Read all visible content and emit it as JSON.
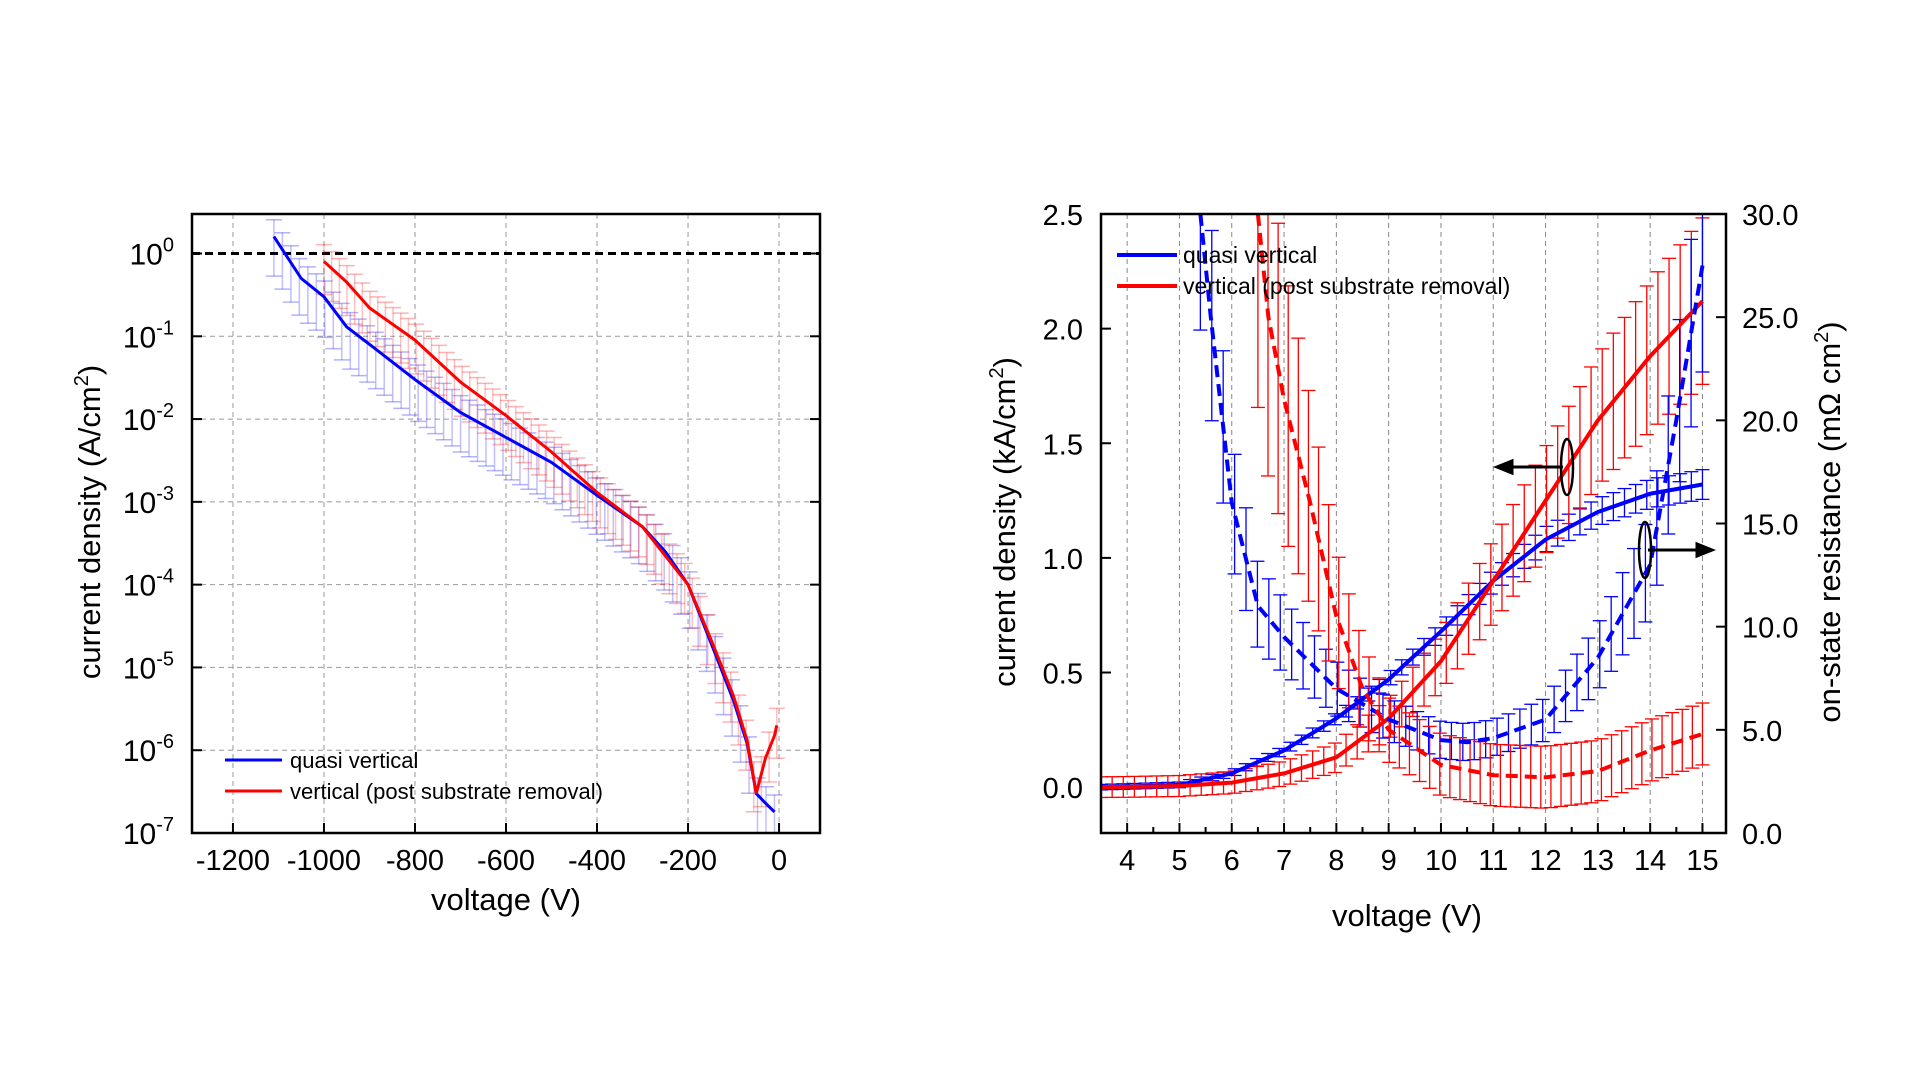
{
  "chart_data": [
    {
      "type": "line",
      "xlabel": "voltage (V)",
      "ylabel": "current density (A/cm",
      "ylabel_sup": "2",
      "ylabel_end": ")",
      "xlim": [
        -1290,
        90
      ],
      "ylim": [
        1e-07,
        3
      ],
      "yscale": "log",
      "xticks": [
        -1200,
        -1000,
        -800,
        -600,
        -400,
        -200,
        0
      ],
      "yticks_exp": [
        0,
        -1,
        -2,
        -3,
        -4,
        -5,
        -6,
        -7
      ],
      "grid": true,
      "legend_position": "bottom-left",
      "reference_line": {
        "y": 1,
        "style": "dashed",
        "color": "#000000"
      },
      "series": [
        {
          "name": "quasi vertical",
          "color": "#0000ff",
          "error_factor": 3,
          "x": [
            -1110,
            -1050,
            -1000,
            -950,
            -900,
            -800,
            -700,
            -600,
            -500,
            -400,
            -300,
            -250,
            -200,
            -150,
            -100,
            -70,
            -50,
            -30,
            -10
          ],
          "y": [
            1.6,
            0.5,
            0.3,
            0.13,
            0.08,
            0.03,
            0.012,
            0.006,
            0.003,
            0.0012,
            0.0005,
            0.00025,
            0.0001,
            2e-05,
            4e-06,
            1.2e-06,
            3e-07,
            2.3e-07,
            1.8e-07
          ]
        },
        {
          "name": "vertical (post substrate removal)",
          "color": "#ff0000",
          "error_factor": 2.5,
          "x": [
            -1000,
            -950,
            -900,
            -800,
            -700,
            -600,
            -500,
            -400,
            -300,
            -200,
            -150,
            -100,
            -70,
            -50,
            -30,
            -10,
            -5
          ],
          "y": [
            0.8,
            0.45,
            0.22,
            0.09,
            0.028,
            0.011,
            0.004,
            0.0013,
            0.0005,
            0.0001,
            2.2e-05,
            4.5e-06,
            1.3e-06,
            3e-07,
            8e-07,
            1.5e-06,
            2e-06
          ]
        }
      ]
    },
    {
      "type": "line",
      "xlabel": "voltage (V)",
      "ylabel": "current density (kA/cm",
      "ylabel_sup": "2",
      "ylabel_end": ")",
      "y2label": "on-state resistance (mΩ cm",
      "y2label_sup": "2",
      "y2label_end": ")",
      "xlim": [
        3.5,
        15.45
      ],
      "ylim": [
        -0.2,
        2.5
      ],
      "y2lim": [
        0,
        30
      ],
      "xticks": [
        4,
        5,
        6,
        7,
        8,
        9,
        10,
        11,
        12,
        13,
        14,
        15
      ],
      "yticks": [
        "0.0",
        "0.5",
        "1.0",
        "1.5",
        "2.0",
        "2.5"
      ],
      "y2ticks": [
        "0.0",
        "5.0",
        "10.0",
        "15.0",
        "20.0",
        "25.0",
        "30.0"
      ],
      "grid": "vertical",
      "legend_position": "top-left",
      "series": [
        {
          "name": "quasi vertical",
          "color": "#0000ff",
          "axis": "left",
          "style": "solid",
          "error": 0.04,
          "x": [
            3.5,
            4,
            5,
            6,
            7,
            8,
            9,
            10,
            11,
            12,
            13,
            14,
            15
          ],
          "y": [
            0,
            0.003,
            0.01,
            0.06,
            0.16,
            0.3,
            0.47,
            0.68,
            0.9,
            1.08,
            1.2,
            1.28,
            1.32
          ]
        },
        {
          "name": "vertical (post substrate removal)",
          "color": "#ff0000",
          "axis": "left",
          "style": "solid",
          "error": 0.15,
          "x": [
            3.5,
            4,
            5,
            6,
            7,
            8,
            9,
            10,
            11,
            12,
            13,
            14,
            15
          ],
          "y": [
            0,
            0.001,
            0.005,
            0.02,
            0.06,
            0.13,
            0.3,
            0.55,
            0.9,
            1.25,
            1.6,
            1.88,
            2.12
          ]
        },
        {
          "color": "#0000ff",
          "axis": "right",
          "style": "dashed",
          "error": 1.5,
          "x": [
            5.4,
            5.6,
            6,
            6.5,
            7,
            8,
            9,
            10,
            10.5,
            11,
            12,
            13,
            14,
            14.5,
            15
          ],
          "y": [
            30,
            25,
            16,
            11,
            9.5,
            7,
            5.5,
            4.5,
            4.4,
            4.6,
            5.5,
            8.5,
            13,
            20,
            27.5
          ]
        },
        {
          "color": "#ff0000",
          "axis": "right",
          "style": "dashed",
          "error": 2.5,
          "x": [
            6.5,
            6.7,
            7,
            7.5,
            8,
            8.5,
            9,
            10,
            11,
            12,
            13,
            14,
            15
          ],
          "y": [
            30,
            25,
            21,
            16,
            10.5,
            7,
            5,
            3.3,
            2.8,
            2.7,
            3,
            4,
            4.8
          ]
        }
      ]
    }
  ]
}
